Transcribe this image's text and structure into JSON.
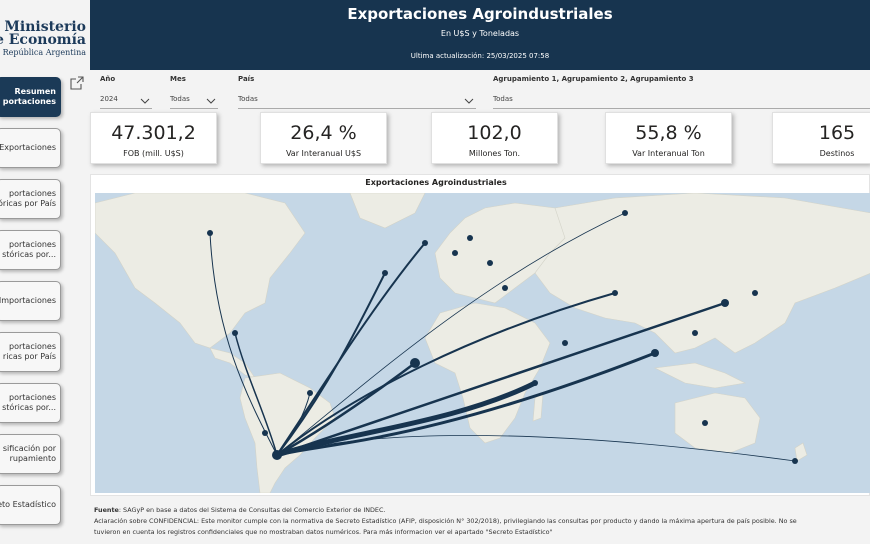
{
  "logo": {
    "line1": "Ministerio",
    "line2": "de Economía",
    "line3": "República Argentina"
  },
  "nav": [
    {
      "label1": "Resumen",
      "label2": "portaciones",
      "active": true
    },
    {
      "label1": "g Exportaciones",
      "label2": ""
    },
    {
      "label1": "portaciones",
      "label2": "tóricas por País"
    },
    {
      "label1": "portaciones",
      "label2": "stóricas por..."
    },
    {
      "label1": "g Importaciones",
      "label2": ""
    },
    {
      "label1": "portaciones",
      "label2": "ricas por País"
    },
    {
      "label1": "portaciones",
      "label2": "stóricas por..."
    },
    {
      "label1": "sificación por",
      "label2": "rupamiento"
    },
    {
      "label1": "eto Estadístico",
      "label2": ""
    }
  ],
  "header": {
    "title": "Exportaciones Agroindustriales",
    "subtitle": "En U$S y Toneladas",
    "updated": "Ultima actualización: 25/03/2025 07:58"
  },
  "filters": {
    "anio": {
      "label": "Año",
      "value": "2024"
    },
    "mes": {
      "label": "Mes",
      "value": "Todas"
    },
    "pais": {
      "label": "País",
      "value": "Todas"
    },
    "agrup": {
      "label": "Agrupamiento 1, Agrupamiento 2, Agrupamiento 3",
      "value": "Todas"
    }
  },
  "kpis": [
    {
      "value": "47.301,2",
      "label": "FOB (mill. U$S)"
    },
    {
      "value": "26,4 %",
      "label": "Var Interanual U$S"
    },
    {
      "value": "102,0",
      "label": "Millones Ton."
    },
    {
      "value": "55,8 %",
      "label": "Var Interanual Ton"
    },
    {
      "value": "165",
      "label": "Destinos"
    }
  ],
  "map": {
    "title": "Exportaciones Agroindustriales"
  },
  "footer": {
    "fuente_label": "Fuente",
    "fuente_text": ": SAGyP en base a datos del Sistema de Consultas del Comercio Exterior de INDEC.",
    "line2": "Aclaración sobre CONFIDENCIAL: Este monitor cumple con la normativa de Secreto Estadístico (AFIP, disposición N° 302/2018),  privilegiando las consultas por producto y dando la máxima apertura de país posible. No se",
    "line3": "tuvieron en cuenta los registros confidenciales que no mostraban datos numéricos. Para más informacion ver el apartado \"Secreto Estadístico\""
  },
  "colors": {
    "header_bg": "#17344f",
    "flow": "#17344f",
    "ocean": "#c5d7e6",
    "land": "#ecece4"
  }
}
